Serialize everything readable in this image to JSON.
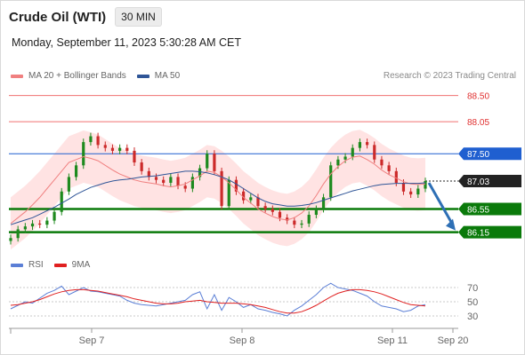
{
  "header": {
    "title": "Crude Oil (WTI)",
    "timeframe": "30 MIN",
    "datetime": "Monday, September 11, 2023 5:30:28 AM CET"
  },
  "legend": {
    "ma20_label": "MA 20 + Bollinger Bands",
    "ma20_color": "#f08080",
    "ma50_label": "MA 50",
    "ma50_color": "#2f5597",
    "credit": "Research © 2023 Trading Central"
  },
  "rsi_legend": {
    "rsi_label": "RSI",
    "rsi_color": "#5b7fd6",
    "ma_label": "9MA",
    "ma_color": "#e02020"
  },
  "chart_data": {
    "type": "line",
    "title": "",
    "ylim": [
      85.84,
      88.8
    ],
    "x_ticks": [
      "Sep 7",
      "Sep 8",
      "Sep 11",
      "Sep 20"
    ],
    "levels": [
      {
        "name": "resistance_2",
        "label": "88.50",
        "value": 88.5,
        "style": "thin-red",
        "color": "#f07070"
      },
      {
        "name": "resistance_1",
        "label": "88.05",
        "value": 88.05,
        "style": "thin-red",
        "color": "#f07070"
      },
      {
        "name": "pivot",
        "label": "87.50",
        "value": 87.5,
        "style": "blue",
        "color": "#1f5fd0"
      },
      {
        "name": "last",
        "label": "87.03",
        "value": 87.03,
        "style": "dotted",
        "color": "#222222"
      },
      {
        "name": "support_1",
        "label": "86.55",
        "value": 86.55,
        "style": "green",
        "color": "#0a7a0a"
      },
      {
        "name": "support_2",
        "label": "86.15",
        "value": 86.15,
        "style": "green",
        "color": "#0a7a0a"
      }
    ],
    "forecast": {
      "from": 87.03,
      "to": 86.15,
      "color": "#2e6fb5"
    },
    "series": [
      {
        "name": "Price",
        "values": [
          86.05,
          86.2,
          86.25,
          86.3,
          86.28,
          86.35,
          86.5,
          86.85,
          87.1,
          87.3,
          87.7,
          87.8,
          87.65,
          87.6,
          87.55,
          87.6,
          87.55,
          87.35,
          87.2,
          87.1,
          87.05,
          87.0,
          87.1,
          86.95,
          86.9,
          87.1,
          87.25,
          87.5,
          87.2,
          86.6,
          87.05,
          86.85,
          86.7,
          86.75,
          86.6,
          86.55,
          86.5,
          86.4,
          86.35,
          86.28,
          86.3,
          86.45,
          86.55,
          86.75,
          87.3,
          87.4,
          87.45,
          87.6,
          87.7,
          87.65,
          87.4,
          87.3,
          87.2,
          87.0,
          86.85,
          86.8,
          86.9,
          87.03
        ]
      },
      {
        "name": "MA 20",
        "values": [
          86.3,
          86.4,
          86.5,
          86.62,
          86.75,
          86.9,
          87.05,
          87.2,
          87.35,
          87.4,
          87.45,
          87.42,
          87.38,
          87.3,
          87.22,
          87.15,
          87.1,
          87.05,
          87.02,
          87.0,
          86.98,
          86.95,
          86.93,
          86.95,
          86.98,
          87.05,
          87.12,
          87.2,
          87.18,
          87.1,
          87.0,
          86.88,
          86.75,
          86.65,
          86.55,
          86.48,
          86.42,
          86.38,
          86.36,
          86.4,
          86.48,
          86.6,
          86.78,
          86.98,
          87.15,
          87.28,
          87.38,
          87.44,
          87.46,
          87.4,
          87.32,
          87.22,
          87.14,
          87.08,
          87.02,
          86.98,
          86.97,
          86.98
        ]
      },
      {
        "name": "MA 50",
        "values": [
          86.28,
          86.32,
          86.36,
          86.4,
          86.46,
          86.52,
          86.58,
          86.65,
          86.72,
          86.8,
          86.86,
          86.92,
          86.96,
          87.0,
          87.03,
          87.05,
          87.06,
          87.08,
          87.1,
          87.11,
          87.12,
          87.14,
          87.16,
          87.18,
          87.2,
          87.2,
          87.19,
          87.17,
          87.14,
          87.1,
          87.05,
          86.98,
          86.9,
          86.82,
          86.74,
          86.68,
          86.64,
          86.62,
          86.6,
          86.6,
          86.61,
          86.63,
          86.66,
          86.7,
          86.74,
          86.78,
          86.82,
          86.86,
          86.89,
          86.92,
          86.95,
          86.97,
          86.98,
          86.99,
          86.99,
          86.99,
          86.99,
          87.0
        ]
      }
    ],
    "rsi": {
      "ticks": [
        30,
        50,
        70
      ],
      "ylim": [
        20,
        80
      ],
      "series": [
        {
          "name": "RSI",
          "values": [
            40,
            45,
            50,
            48,
            55,
            62,
            66,
            72,
            60,
            65,
            70,
            65,
            64,
            62,
            60,
            58,
            52,
            48,
            46,
            45,
            44,
            46,
            48,
            50,
            52,
            60,
            64,
            40,
            60,
            38,
            56,
            50,
            42,
            46,
            40,
            38,
            35,
            33,
            30,
            38,
            44,
            52,
            60,
            70,
            76,
            70,
            68,
            66,
            62,
            58,
            50,
            44,
            42,
            40,
            36,
            38,
            44,
            46
          ]
        },
        {
          "name": "9MA",
          "values": [
            45,
            46,
            48,
            50,
            53,
            57,
            61,
            64,
            66,
            67,
            67,
            66,
            65,
            63,
            61,
            59,
            57,
            54,
            52,
            50,
            48,
            47,
            47,
            48,
            50,
            51,
            52,
            50,
            49,
            48,
            48,
            48,
            47,
            46,
            44,
            42,
            39,
            36,
            34,
            34,
            36,
            40,
            45,
            51,
            57,
            62,
            65,
            67,
            67,
            66,
            64,
            61,
            57,
            53,
            49,
            46,
            45,
            44
          ]
        }
      ]
    }
  }
}
